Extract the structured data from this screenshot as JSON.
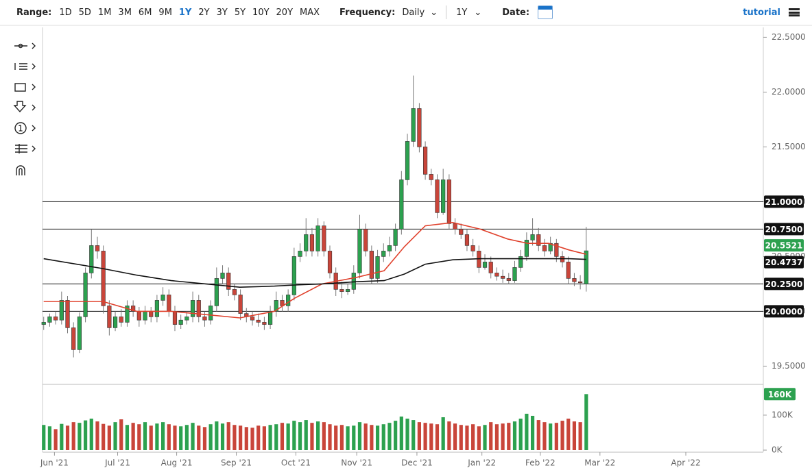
{
  "toolbar": {
    "range_label": "Range:",
    "ranges": [
      "1D",
      "5D",
      "1M",
      "3M",
      "6M",
      "9M",
      "1Y",
      "2Y",
      "3Y",
      "5Y",
      "10Y",
      "20Y",
      "MAX"
    ],
    "active_range": "1Y",
    "frequency_label": "Frequency:",
    "frequency": "Daily",
    "period": "1Y",
    "date_label": "Date:",
    "tutorial": "tutorial"
  },
  "chart_data": {
    "type": "candlestick",
    "up_color": "#2ca14f",
    "down_color": "#c9453a",
    "open": [
      19.88,
      19.9,
      19.95,
      19.92,
      20.1,
      19.85,
      19.65,
      19.95,
      20.35,
      20.6,
      20.55,
      20.05,
      19.85,
      19.95,
      19.9,
      20.05,
      20.0,
      19.92,
      20.0,
      19.95,
      20.1,
      20.15,
      20.0,
      19.88,
      19.92,
      19.95,
      20.1,
      19.95,
      19.92,
      20.05,
      20.3,
      20.35,
      20.2,
      20.15,
      19.98,
      19.95,
      19.92,
      19.9,
      19.88,
      20.0,
      20.1,
      20.05,
      20.15,
      20.5,
      20.55,
      20.7,
      20.55,
      20.78,
      20.55,
      20.35,
      20.2,
      20.18,
      20.2,
      20.35,
      20.75,
      20.55,
      20.3,
      20.5,
      20.55,
      20.6,
      20.75,
      21.2,
      21.55,
      21.85,
      21.5,
      21.25,
      21.2,
      20.9,
      21.2,
      20.8,
      20.75,
      20.7,
      20.6,
      20.55,
      20.4,
      20.45,
      20.35,
      20.32,
      20.3,
      20.28,
      20.4,
      20.5,
      20.65,
      20.7,
      20.6,
      20.55,
      20.62,
      20.5,
      20.45,
      20.3,
      20.27,
      20.25
    ],
    "high": [
      19.95,
      19.98,
      20.0,
      20.18,
      20.14,
      19.9,
      19.99,
      20.4,
      20.75,
      20.68,
      20.6,
      20.1,
      20.0,
      20.02,
      20.1,
      20.1,
      20.04,
      20.05,
      20.04,
      20.15,
      20.22,
      20.2,
      20.05,
      19.97,
      20.0,
      20.18,
      20.15,
      20.0,
      20.1,
      20.4,
      20.42,
      20.4,
      20.25,
      20.2,
      20.03,
      20.0,
      19.98,
      19.95,
      20.05,
      20.18,
      20.15,
      20.2,
      20.58,
      20.62,
      20.85,
      20.76,
      20.85,
      20.82,
      20.6,
      20.4,
      20.27,
      20.25,
      20.42,
      20.88,
      20.8,
      20.6,
      20.56,
      20.62,
      20.68,
      20.8,
      21.28,
      21.62,
      22.15,
      21.9,
      21.55,
      21.3,
      21.25,
      21.3,
      21.25,
      20.85,
      20.8,
      20.75,
      20.66,
      20.6,
      20.52,
      20.5,
      20.4,
      20.38,
      20.35,
      20.46,
      20.56,
      20.72,
      20.85,
      20.76,
      20.66,
      20.68,
      20.66,
      20.55,
      20.5,
      20.35,
      20.33,
      20.77
    ],
    "low": [
      19.83,
      19.86,
      19.88,
      19.88,
      19.8,
      19.58,
      19.62,
      19.9,
      20.3,
      20.48,
      19.98,
      19.78,
      19.82,
      19.86,
      19.86,
      19.95,
      19.86,
      19.88,
      19.9,
      19.9,
      20.05,
      19.95,
      19.82,
      19.84,
      19.88,
      19.9,
      19.9,
      19.86,
      19.88,
      20.0,
      20.25,
      20.14,
      20.1,
      19.92,
      19.9,
      19.87,
      19.86,
      19.83,
      19.84,
      19.95,
      20.0,
      20.0,
      20.1,
      20.45,
      20.5,
      20.5,
      20.5,
      20.5,
      20.3,
      20.14,
      20.12,
      20.15,
      20.16,
      20.3,
      20.5,
      20.25,
      20.26,
      20.45,
      20.5,
      20.55,
      20.7,
      21.15,
      21.5,
      21.45,
      21.2,
      21.15,
      20.85,
      20.88,
      20.75,
      20.7,
      20.66,
      20.55,
      20.5,
      20.35,
      20.38,
      20.3,
      20.28,
      20.26,
      20.25,
      20.26,
      20.36,
      20.46,
      20.6,
      20.55,
      20.5,
      20.52,
      20.45,
      20.4,
      20.25,
      20.23,
      20.2,
      20.18
    ],
    "close": [
      19.9,
      19.95,
      19.92,
      20.1,
      19.85,
      19.65,
      19.95,
      20.35,
      20.6,
      20.55,
      20.05,
      19.85,
      19.95,
      19.9,
      20.05,
      20.0,
      19.92,
      20.0,
      19.95,
      20.1,
      20.15,
      20.0,
      19.88,
      19.92,
      19.95,
      20.1,
      19.95,
      19.92,
      20.05,
      20.3,
      20.35,
      20.2,
      20.15,
      19.98,
      19.95,
      19.92,
      19.9,
      19.88,
      20.0,
      20.1,
      20.05,
      20.15,
      20.5,
      20.55,
      20.7,
      20.55,
      20.78,
      20.55,
      20.35,
      20.2,
      20.18,
      20.2,
      20.35,
      20.75,
      20.55,
      20.3,
      20.5,
      20.55,
      20.6,
      20.75,
      21.2,
      21.55,
      21.85,
      21.5,
      21.25,
      21.2,
      20.9,
      21.2,
      20.8,
      20.75,
      20.7,
      20.6,
      20.55,
      20.4,
      20.45,
      20.35,
      20.32,
      20.3,
      20.28,
      20.4,
      20.5,
      20.65,
      20.7,
      20.6,
      20.55,
      20.62,
      20.5,
      20.45,
      20.3,
      20.27,
      20.26,
      20.5521
    ],
    "volume": [
      72000,
      68000,
      60000,
      75000,
      70000,
      80000,
      78000,
      85000,
      90000,
      82000,
      75000,
      70000,
      80000,
      88000,
      72000,
      78000,
      74000,
      80000,
      70000,
      76000,
      80000,
      74000,
      70000,
      68000,
      72000,
      78000,
      70000,
      66000,
      74000,
      82000,
      76000,
      80000,
      72000,
      70000,
      66000,
      64000,
      70000,
      68000,
      72000,
      74000,
      78000,
      76000,
      84000,
      80000,
      86000,
      78000,
      82000,
      80000,
      74000,
      70000,
      72000,
      68000,
      70000,
      80000,
      76000,
      72000,
      70000,
      74000,
      78000,
      84000,
      96000,
      90000,
      86000,
      80000,
      78000,
      76000,
      74000,
      94000,
      82000,
      76000,
      72000,
      70000,
      74000,
      68000,
      72000,
      80000,
      74000,
      76000,
      78000,
      82000,
      90000,
      104000,
      98000,
      86000,
      80000,
      76000,
      78000,
      84000,
      90000,
      82000,
      80000,
      160000
    ],
    "last_volume_label": "160K",
    "moving_averages": [
      {
        "color": "#e0412c",
        "x": [
          0,
          9.9,
          15.6,
          21.4,
          27.2,
          32.9,
          38.7,
          42.1,
          46.7,
          52.5,
          57.1,
          60.5,
          64,
          68.6,
          73.2,
          77.8,
          81.2,
          84.7,
          88.1,
          91
        ],
        "values": [
          20.09,
          20.09,
          20.0,
          20.0,
          19.97,
          19.94,
          20.0,
          20.12,
          20.25,
          20.31,
          20.37,
          20.59,
          20.78,
          20.81,
          20.75,
          20.66,
          20.62,
          20.62,
          20.56,
          20.52
        ]
      },
      {
        "color": "#111111",
        "x": [
          0,
          9.9,
          15.6,
          21.4,
          27.2,
          32.9,
          38.7,
          42.1,
          46.7,
          52.5,
          57.1,
          60.5,
          64,
          68.6,
          73.2,
          77.8,
          81.2,
          84.7,
          88.1,
          91
        ],
        "values": [
          20.48,
          20.39,
          20.33,
          20.28,
          20.25,
          20.22,
          20.23,
          20.24,
          20.25,
          20.27,
          20.28,
          20.34,
          20.43,
          20.47,
          20.48,
          20.48,
          20.48,
          20.48,
          20.48,
          20.4737
        ]
      }
    ],
    "levels": [
      {
        "value": 21,
        "label": "21.0000"
      },
      {
        "value": 20.75,
        "label": "20.7500"
      },
      {
        "value": 20.25,
        "label": "20.2500"
      },
      {
        "value": 20,
        "label": "20.0000"
      }
    ],
    "ylim": [
      19.34,
      22.59
    ],
    "yticks": [
      {
        "value": 19.5,
        "label": "19.5000"
      },
      {
        "value": 20,
        "label": "20.0000"
      },
      {
        "value": 20.5,
        "label": "20.5000"
      },
      {
        "value": 21,
        "label": "21.0000"
      },
      {
        "value": 21.5,
        "label": "21.5000"
      },
      {
        "value": 22,
        "label": "22.0000"
      },
      {
        "value": 22.5,
        "label": "22.5000"
      }
    ],
    "volume_ylim": [
      0,
      186000
    ],
    "volume_ticks": [
      {
        "value": 0,
        "label": "0K"
      },
      {
        "value": 100000,
        "label": "100K"
      }
    ],
    "xlim": [
      -0.2,
      120.7
    ],
    "xticks": [
      {
        "value": 1.8,
        "label": "Jun '21"
      },
      {
        "value": 12.4,
        "label": "Jul '21"
      },
      {
        "value": 22.3,
        "label": "Aug '21"
      },
      {
        "value": 32.3,
        "label": "Sep '21"
      },
      {
        "value": 42.3,
        "label": "Oct '21"
      },
      {
        "value": 52.5,
        "label": "Nov '21"
      },
      {
        "value": 62.6,
        "label": "Dec '21"
      },
      {
        "value": 73.5,
        "label": "Jan '22"
      },
      {
        "value": 83.3,
        "label": "Feb '22"
      },
      {
        "value": 93.3,
        "label": "Mar '22"
      },
      {
        "value": 107.7,
        "label": "Apr '22"
      }
    ]
  }
}
